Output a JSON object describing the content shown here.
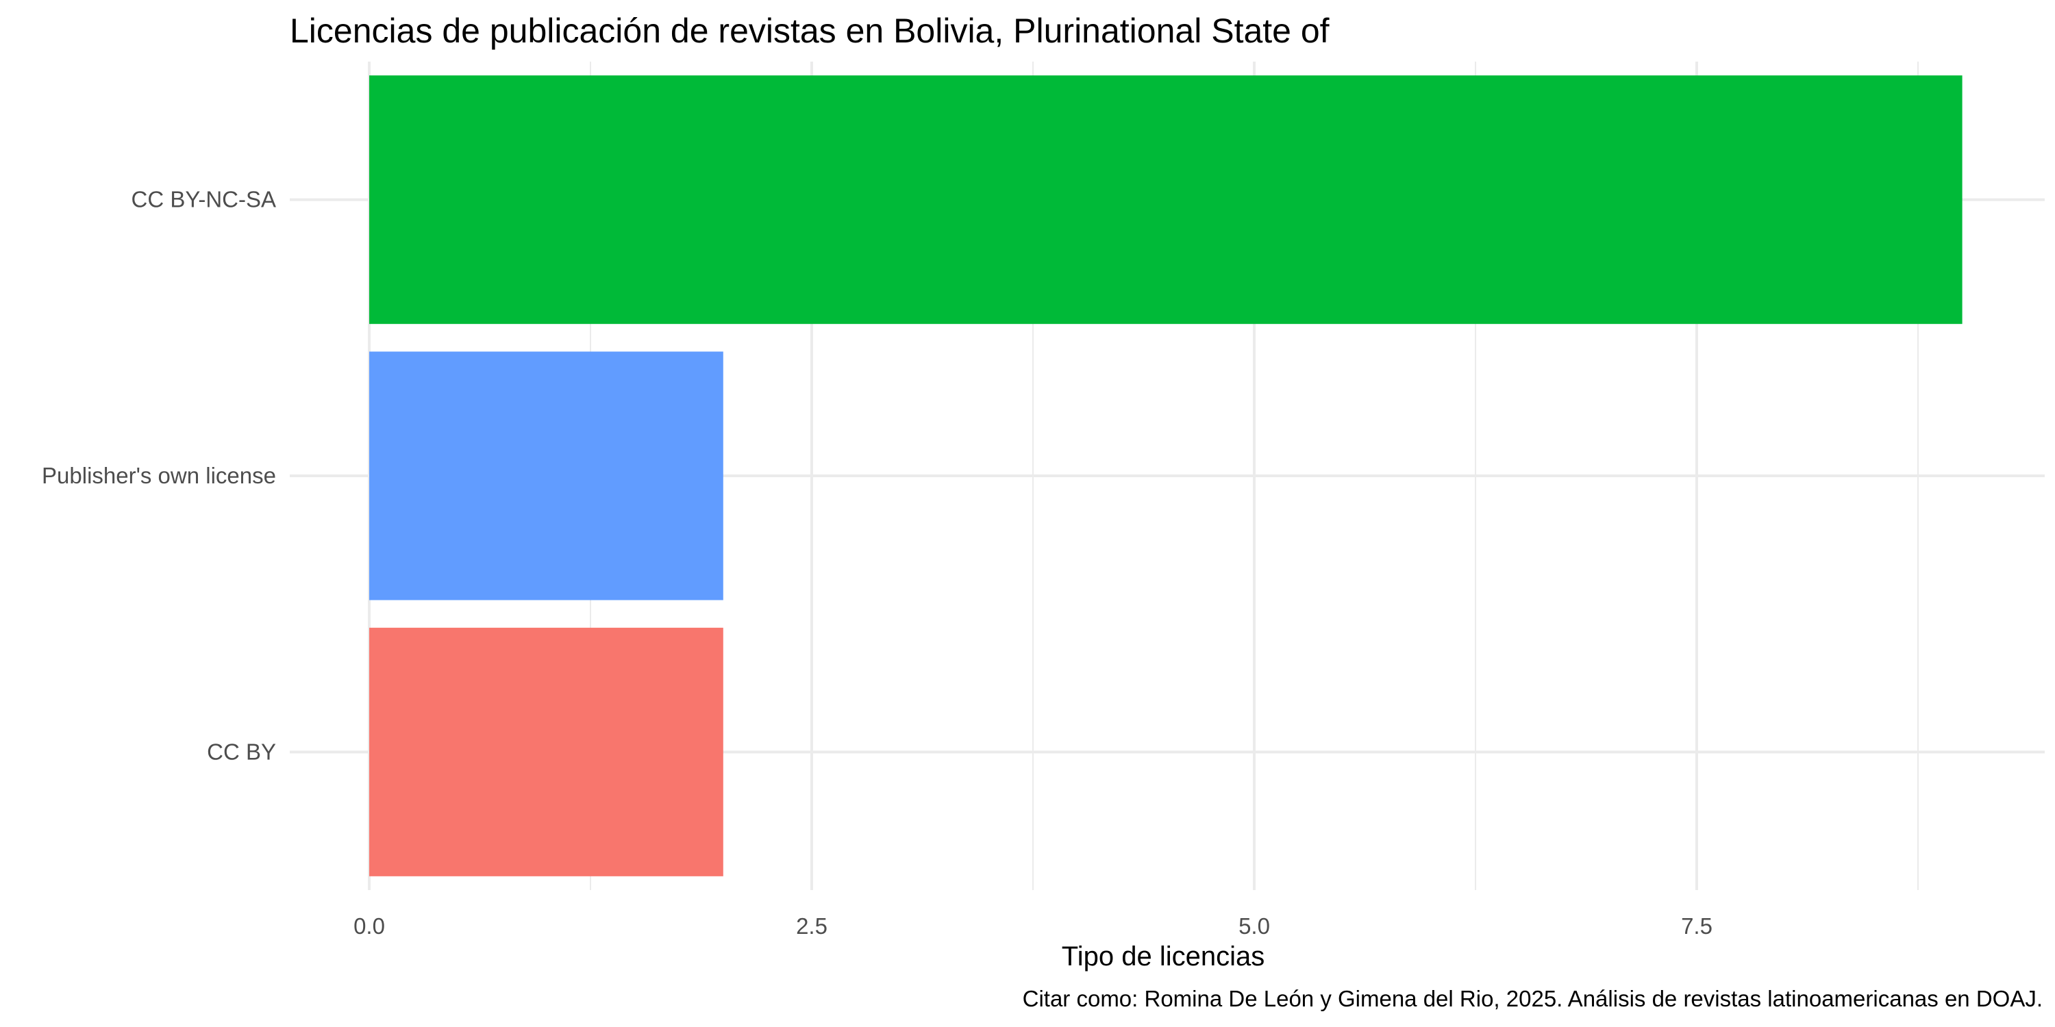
{
  "chart_data": {
    "type": "bar",
    "orientation": "horizontal",
    "title": "Licencias de publicación de revistas en Bolivia, Plurinational State of",
    "xlabel": "Tipo de licencias",
    "ylabel": "",
    "caption": "Citar como: Romina De León y Gimena del Rio, 2025. Análisis de revistas latinoamericanas en DOAJ.",
    "categories": [
      "CC BY",
      "Publisher's own license",
      "CC BY-NC-SA"
    ],
    "values": [
      2,
      2,
      9
    ],
    "colors": [
      "#F8766D",
      "#619CFF",
      "#00BA38"
    ],
    "xlim": [
      0,
      9.45
    ],
    "x_ticks": [
      0,
      2.5,
      5,
      7.5
    ],
    "x_tick_labels": [
      "0.0",
      "2.5",
      "5.0",
      "7.5"
    ],
    "grid": true,
    "legend": "none"
  }
}
